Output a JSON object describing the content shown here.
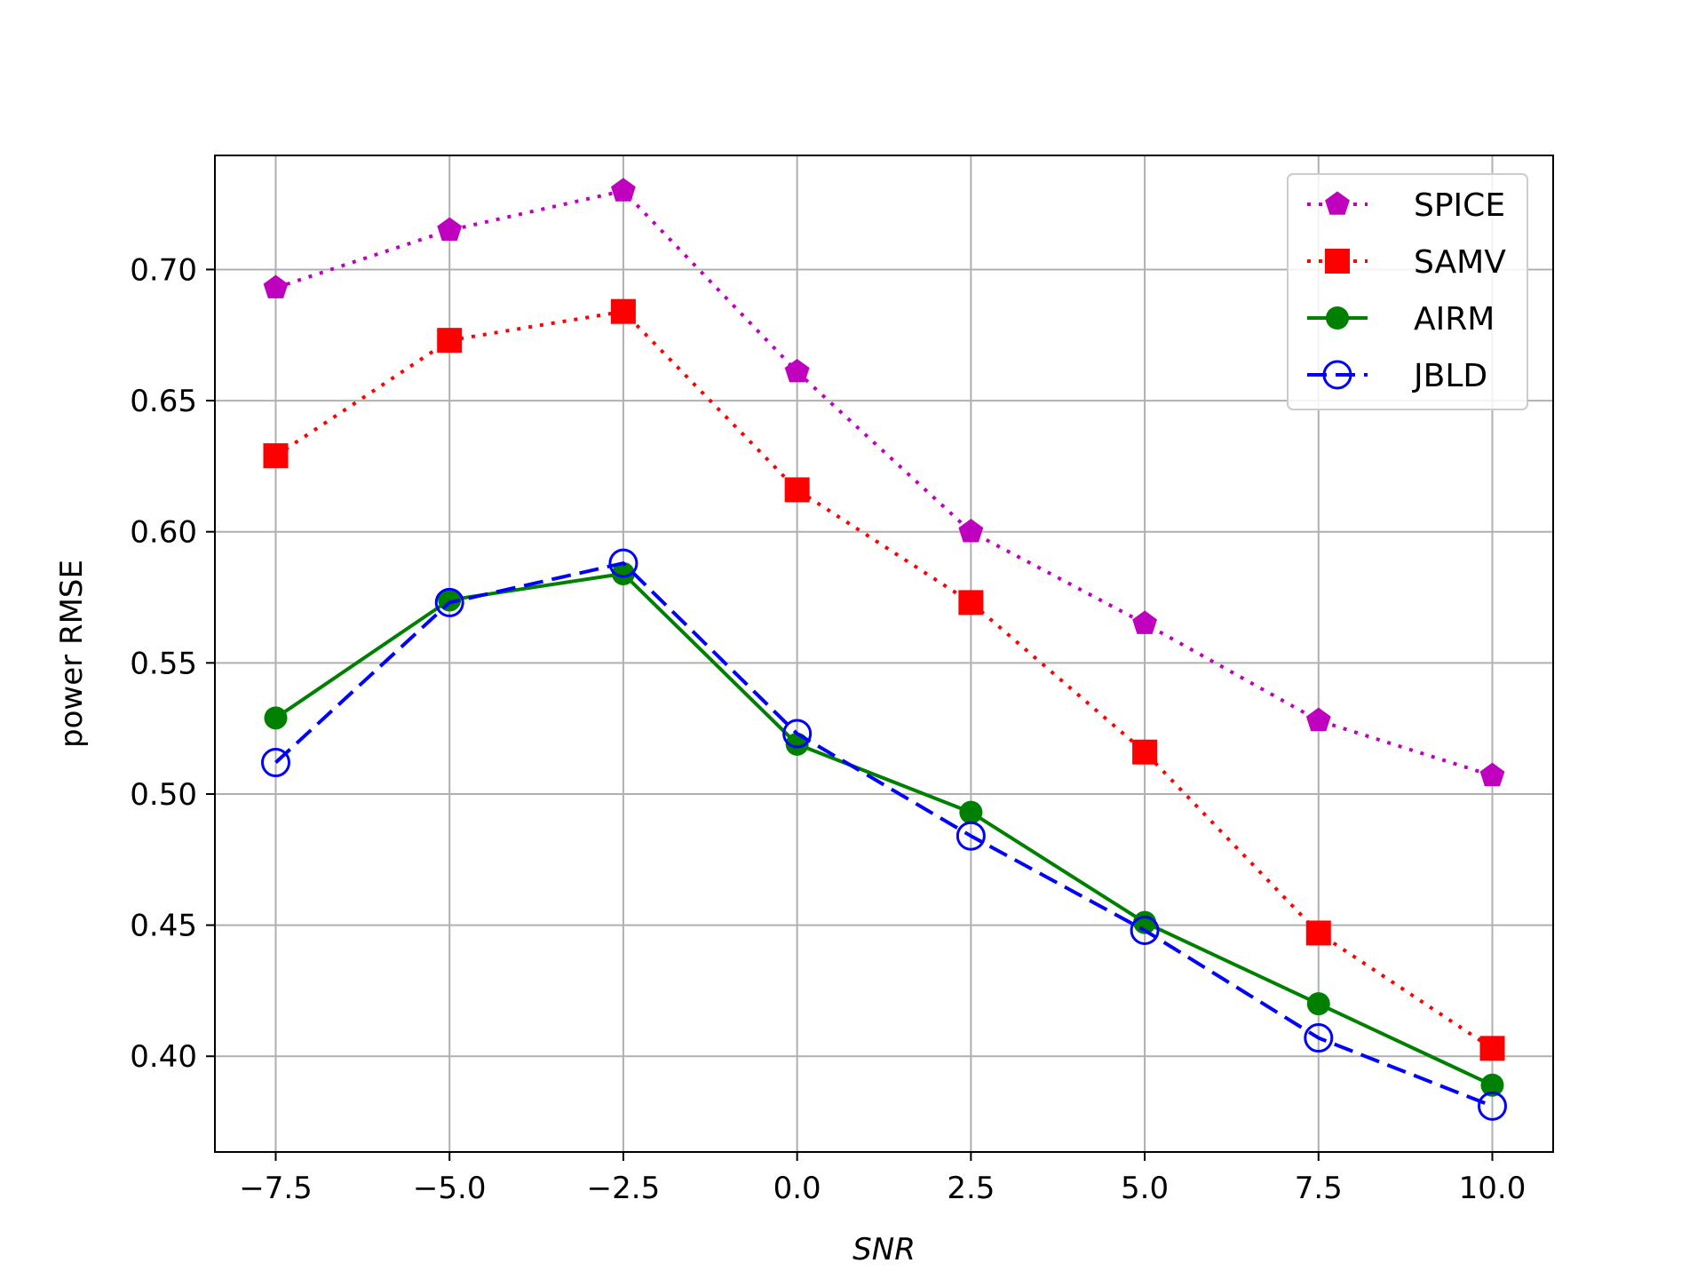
{
  "chart_data": {
    "type": "line",
    "title": "",
    "xlabel": "SNR",
    "ylabel": "power RMSE",
    "x": [
      -7.5,
      -5.0,
      -2.5,
      0.0,
      2.5,
      5.0,
      7.5,
      10.0
    ],
    "xlim": [
      -8.375,
      10.875
    ],
    "ylim": [
      0.3635,
      0.7435
    ],
    "xticks": [
      -7.5,
      -5.0,
      -2.5,
      0.0,
      2.5,
      5.0,
      7.5,
      10.0
    ],
    "xtick_labels": [
      "−7.5",
      "−5.0",
      "−2.5",
      "0.0",
      "2.5",
      "5.0",
      "7.5",
      "10.0"
    ],
    "yticks": [
      0.4,
      0.45,
      0.5,
      0.55,
      0.6,
      0.65,
      0.7
    ],
    "ytick_labels": [
      "0.40",
      "0.45",
      "0.50",
      "0.55",
      "0.60",
      "0.65",
      "0.70"
    ],
    "grid": true,
    "legend_position": "upper-right",
    "series": [
      {
        "name": "SPICE",
        "color": "#bf00bf",
        "line_style": "dotted",
        "marker": "pentagon",
        "values": [
          0.693,
          0.715,
          0.73,
          0.661,
          0.6,
          0.565,
          0.528,
          0.507
        ]
      },
      {
        "name": "SAMV",
        "color": "#ff0000",
        "line_style": "dotted",
        "marker": "square",
        "values": [
          0.629,
          0.673,
          0.684,
          0.616,
          0.573,
          0.516,
          0.447,
          0.403
        ]
      },
      {
        "name": "AIRM",
        "color": "#008000",
        "line_style": "solid",
        "marker": "filled-circle",
        "values": [
          0.529,
          0.574,
          0.584,
          0.519,
          0.493,
          0.451,
          0.42,
          0.389
        ]
      },
      {
        "name": "JBLD",
        "color": "#0000ff",
        "line_style": "dashed",
        "marker": "open-circle",
        "values": [
          0.512,
          0.573,
          0.588,
          0.523,
          0.484,
          0.448,
          0.407,
          0.381
        ]
      }
    ]
  }
}
